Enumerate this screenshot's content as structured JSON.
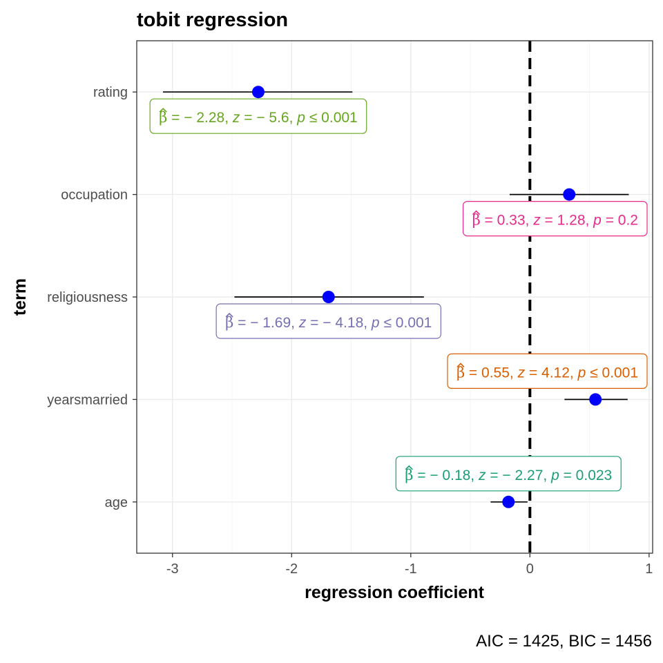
{
  "chart_data": {
    "type": "scatter",
    "title": "tobit regression",
    "xlabel": "regression coefficient",
    "ylabel": "term",
    "caption": "AIC = 1425, BIC = 1456",
    "xlim": [
      -3.3,
      1.03
    ],
    "x_ticks": [
      -3,
      -2,
      -1,
      0,
      1
    ],
    "x_tick_labels": [
      "-3",
      "-2",
      "-1",
      "0",
      "1"
    ],
    "reference_line_x": 0,
    "grid": true,
    "point_color": "#0000FF",
    "terms": [
      {
        "term": "rating",
        "estimate": -2.28,
        "conf_low": -3.08,
        "conf_high": -1.49,
        "label": {
          "beta": "− 2.28",
          "z": "− 5.6",
          "p_op": "≤",
          "p": "0.001"
        },
        "color": "#66A61E",
        "label_side": "below"
      },
      {
        "term": "occupation",
        "estimate": 0.33,
        "conf_low": -0.17,
        "conf_high": 0.83,
        "label": {
          "beta": "0.33",
          "z": "1.28",
          "p_op": "=",
          "p": "0.2"
        },
        "color": "#E7298A",
        "label_side": "below"
      },
      {
        "term": "religiousness",
        "estimate": -1.69,
        "conf_low": -2.48,
        "conf_high": -0.89,
        "label": {
          "beta": "− 1.69",
          "z": "− 4.18",
          "p_op": "≤",
          "p": "0.001"
        },
        "color": "#7570B3",
        "label_side": "below"
      },
      {
        "term": "yearsmarried",
        "estimate": 0.55,
        "conf_low": 0.29,
        "conf_high": 0.82,
        "label": {
          "beta": "0.55",
          "z": "4.12",
          "p_op": "≤",
          "p": "0.001"
        },
        "color": "#D95F02",
        "label_side": "above"
      },
      {
        "term": "age",
        "estimate": -0.18,
        "conf_low": -0.33,
        "conf_high": -0.02,
        "label": {
          "beta": "− 0.18",
          "z": "− 2.27",
          "p_op": "=",
          "p": "0.023"
        },
        "color": "#1B9E77",
        "label_side": "above"
      }
    ]
  }
}
